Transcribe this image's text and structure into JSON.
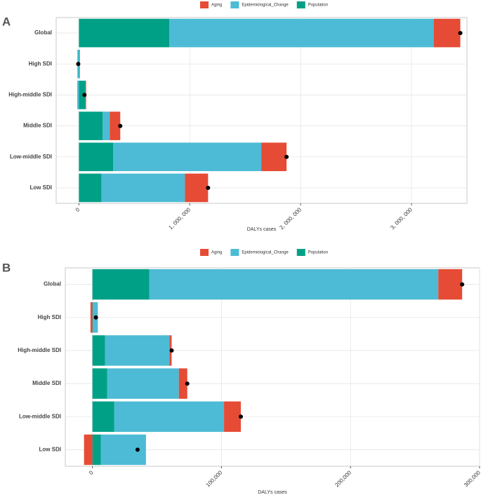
{
  "chart_data": [
    {
      "type": "bar",
      "label": "A",
      "orientation": "horizontal",
      "stacked": true,
      "grid": true,
      "xlabel": "DALYs cases",
      "categories": [
        "Global",
        "High SDI",
        "High-middle SDI",
        "Middle SDI",
        "Low-middle SDI",
        "Low SDI"
      ],
      "series": [
        {
          "name": "Aging",
          "color": "#e64b35",
          "values": [
            240000,
            4000,
            5000,
            95000,
            228000,
            209000
          ]
        },
        {
          "name": "Epidemiological_Change",
          "color": "#4dbbd5",
          "values": [
            2385000,
            -14000,
            -15000,
            63000,
            1335000,
            753000
          ]
        },
        {
          "name": "Population",
          "color": "#00a087",
          "values": [
            815000,
            4000,
            60000,
            215000,
            310000,
            203000
          ]
        }
      ],
      "xlim": [
        -205000,
        3500000
      ],
      "xticks": [
        0,
        {
          "value": 1000000,
          "label": "1, 000, 000"
        },
        {
          "value": 2000000,
          "label": "2, 000, 000"
        },
        {
          "value": 3000000,
          "label": "3, 000, 000"
        }
      ]
    },
    {
      "type": "bar",
      "label": "B",
      "orientation": "horizontal",
      "stacked": true,
      "grid": true,
      "xlabel": "DALYs cases",
      "categories": [
        "Global",
        "High SDI",
        "High-middle SDI",
        "Middle SDI",
        "Low-middle SDI",
        "Low SDI"
      ],
      "series": [
        {
          "name": "Aging",
          "color": "#e64b35",
          "values": [
            18500,
            -1500,
            1600,
            6500,
            13000,
            -6500
          ]
        },
        {
          "name": "Epidemiological_Change",
          "color": "#4dbbd5",
          "values": [
            224000,
            3800,
            50000,
            55600,
            85000,
            35000
          ]
        },
        {
          "name": "Population",
          "color": "#00a087",
          "values": [
            44000,
            400,
            9800,
            11400,
            17000,
            6500
          ]
        }
      ],
      "xlim": [
        -21000,
        300000
      ],
      "xticks": [
        0,
        {
          "value": 100000,
          "label": "100,000"
        },
        {
          "value": 200000,
          "label": "200,000"
        },
        {
          "value": 300000,
          "label": "300,000"
        }
      ]
    }
  ]
}
